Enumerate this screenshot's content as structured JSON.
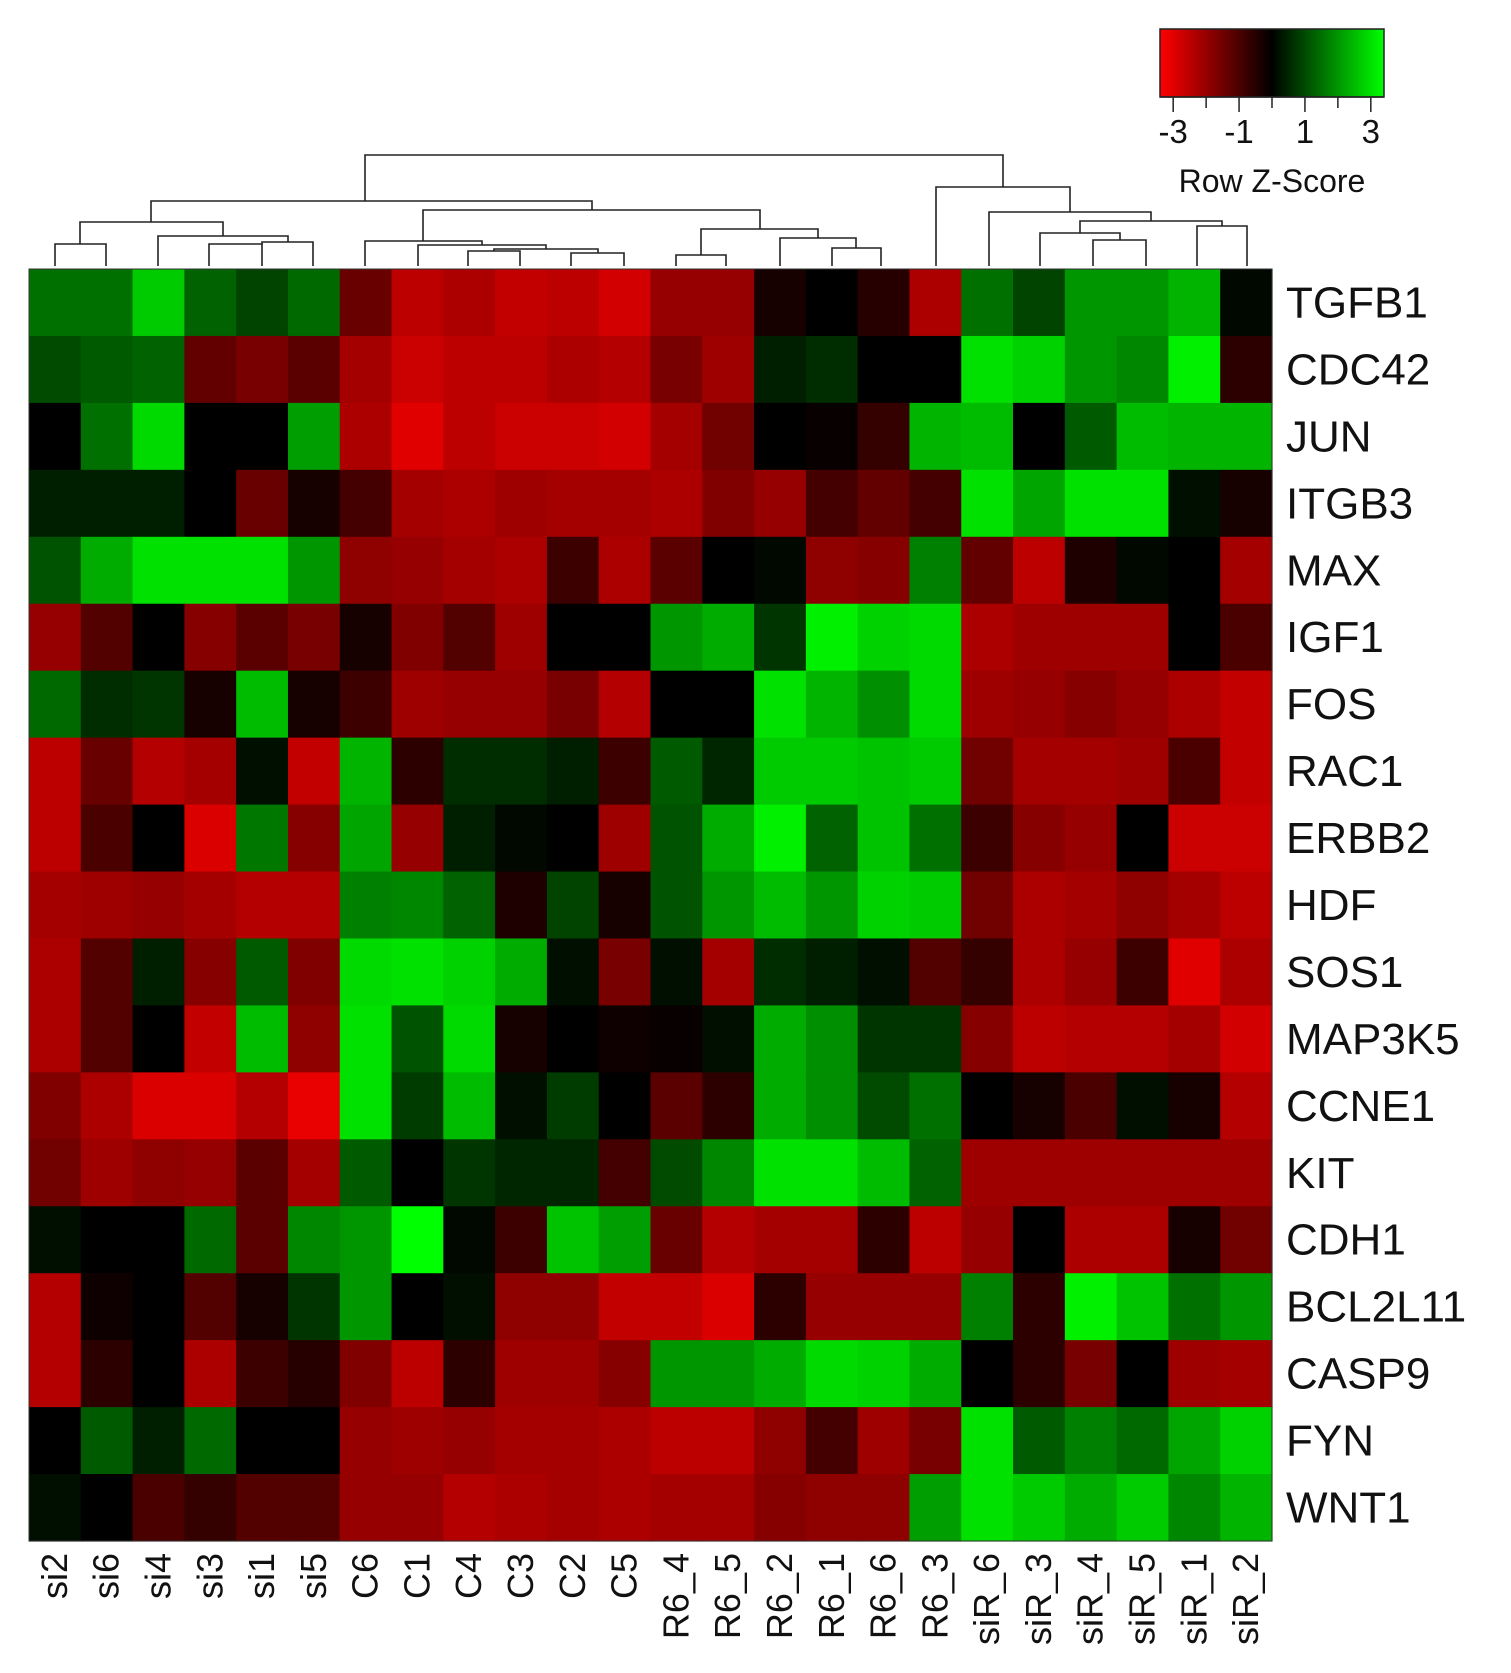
{
  "chart_data": {
    "type": "heatmap",
    "title": "",
    "xlabel": "",
    "ylabel": "",
    "columns": [
      "si2",
      "si6",
      "si4",
      "si3",
      "si1",
      "si5",
      "C6",
      "C1",
      "C4",
      "C3",
      "C2",
      "C5",
      "R6_4",
      "R6_5",
      "R6_2",
      "R6_1",
      "R6_6",
      "R6_3",
      "siR_6",
      "siR_3",
      "siR_4",
      "siR_5",
      "siR_1",
      "siR_2"
    ],
    "rows": [
      "TGFB1",
      "CDC42",
      "JUN",
      "ITGB3",
      "MAX",
      "IGF1",
      "FOS",
      "RAC1",
      "ERBB2",
      "HDF",
      "SOS1",
      "MAP3K5",
      "CCNE1",
      "KIT",
      "CDH1",
      "BCL2L11",
      "CASP9",
      "FYN",
      "WNT1"
    ],
    "values": [
      [
        1.5,
        1.5,
        2.7,
        1.3,
        0.9,
        1.4,
        -1.4,
        -2.5,
        -2.3,
        -2.6,
        -2.5,
        -2.8,
        -2.0,
        -2.0,
        -0.3,
        0.0,
        -0.5,
        -2.3,
        1.5,
        0.9,
        2.0,
        2.0,
        2.4,
        0.1
      ],
      [
        1.0,
        1.2,
        1.3,
        -1.3,
        -1.6,
        -1.2,
        -2.2,
        -2.7,
        -2.5,
        -2.5,
        -2.3,
        -2.4,
        -1.6,
        -2.1,
        0.4,
        0.6,
        0.0,
        0.0,
        3.0,
        2.8,
        2.0,
        1.8,
        3.2,
        -0.6
      ],
      [
        0.0,
        1.5,
        2.9,
        0.0,
        0.0,
        2.1,
        -2.3,
        -3.0,
        -2.5,
        -2.7,
        -2.7,
        -2.8,
        -2.2,
        -1.5,
        0.0,
        -0.1,
        -0.7,
        2.4,
        2.5,
        0.0,
        1.2,
        2.5,
        2.4,
        2.4
      ],
      [
        0.4,
        0.4,
        0.4,
        0.0,
        -1.4,
        -0.3,
        -0.9,
        -2.2,
        -2.3,
        -2.1,
        -2.2,
        -2.2,
        -2.3,
        -1.7,
        -2.0,
        -0.9,
        -1.3,
        -0.9,
        3.0,
        2.2,
        3.0,
        3.0,
        0.2,
        -0.3
      ],
      [
        1.1,
        2.3,
        3.0,
        3.0,
        3.0,
        2.0,
        -1.9,
        -2.0,
        -2.2,
        -2.3,
        -0.8,
        -2.3,
        -1.2,
        0.0,
        0.1,
        -1.9,
        -1.8,
        1.7,
        -1.3,
        -2.5,
        -0.4,
        0.1,
        0.0,
        -2.2
      ],
      [
        -2.0,
        -1.1,
        0.0,
        -1.8,
        -1.2,
        -1.6,
        -0.3,
        -1.7,
        -1.1,
        -2.1,
        0.0,
        0.0,
        2.0,
        2.3,
        0.7,
        3.2,
        2.8,
        2.9,
        -2.3,
        -2.1,
        -2.1,
        -2.1,
        0.0,
        -1.0
      ],
      [
        1.4,
        0.6,
        0.7,
        -0.3,
        2.5,
        -0.3,
        -0.8,
        -2.1,
        -2.0,
        -2.0,
        -1.6,
        -2.4,
        0.0,
        0.0,
        3.0,
        2.4,
        1.9,
        2.9,
        -2.1,
        -2.0,
        -1.8,
        -2.0,
        -2.3,
        -2.6
      ],
      [
        -2.5,
        -1.4,
        -2.4,
        -2.2,
        0.2,
        -2.6,
        2.4,
        -0.6,
        0.6,
        0.6,
        0.4,
        -0.8,
        1.2,
        0.5,
        2.7,
        2.7,
        2.6,
        2.7,
        -1.5,
        -2.2,
        -2.2,
        -2.1,
        -1.0,
        -2.6
      ],
      [
        -2.5,
        -1.0,
        0.0,
        -2.9,
        1.6,
        -1.8,
        2.2,
        -2.0,
        0.4,
        0.1,
        0.0,
        -2.1,
        1.1,
        2.3,
        3.2,
        1.3,
        2.6,
        1.5,
        -0.8,
        -1.8,
        -2.0,
        0.0,
        -2.7,
        -2.7
      ],
      [
        -2.2,
        -2.1,
        -2.0,
        -2.2,
        -2.4,
        -2.4,
        1.7,
        1.8,
        1.3,
        -0.4,
        0.9,
        -0.3,
        1.1,
        2.0,
        2.5,
        2.0,
        2.8,
        2.7,
        -1.5,
        -2.3,
        -2.2,
        -1.9,
        -2.2,
        -2.5
      ],
      [
        -2.3,
        -1.1,
        0.4,
        -1.8,
        1.2,
        -1.7,
        2.9,
        3.0,
        2.8,
        2.3,
        0.2,
        -1.6,
        0.2,
        -2.2,
        0.6,
        0.4,
        0.2,
        -1.1,
        -0.7,
        -2.3,
        -2.0,
        -0.8,
        -3.0,
        -2.3
      ],
      [
        -2.3,
        -1.1,
        0.0,
        -2.6,
        2.5,
        -1.9,
        3.0,
        1.1,
        2.9,
        -0.3,
        0.0,
        -0.2,
        -0.1,
        0.2,
        2.3,
        1.9,
        0.7,
        0.7,
        -1.8,
        -2.5,
        -2.4,
        -2.4,
        -2.2,
        -2.8
      ],
      [
        -1.7,
        -2.3,
        -2.9,
        -2.9,
        -2.4,
        -3.1,
        3.0,
        0.8,
        2.5,
        0.2,
        0.8,
        0.0,
        -1.2,
        -0.6,
        2.3,
        1.9,
        1.0,
        1.5,
        0.0,
        -0.3,
        -1.0,
        0.2,
        -0.3,
        -2.4
      ],
      [
        -1.5,
        -2.1,
        -1.9,
        -2.0,
        -1.2,
        -2.2,
        1.2,
        0.0,
        0.7,
        0.5,
        0.5,
        -0.9,
        1.0,
        1.8,
        3.0,
        3.0,
        2.5,
        1.3,
        -2.1,
        -2.1,
        -2.1,
        -2.1,
        -2.1,
        -2.1
      ],
      [
        0.2,
        0.0,
        0.0,
        1.4,
        -1.2,
        1.8,
        2.0,
        3.6,
        0.1,
        -0.8,
        2.6,
        2.1,
        -1.4,
        -2.4,
        -2.2,
        -2.2,
        -0.6,
        -2.5,
        -2.0,
        0.0,
        -2.3,
        -2.3,
        -0.3,
        -1.5
      ],
      [
        -2.4,
        -0.2,
        0.0,
        -1.1,
        -0.3,
        0.7,
        2.0,
        0.0,
        0.2,
        -1.9,
        -1.9,
        -2.6,
        -2.6,
        -2.9,
        -0.6,
        -2.0,
        -2.0,
        -2.0,
        1.7,
        -0.6,
        3.2,
        2.6,
        1.5,
        2.0
      ],
      [
        -2.4,
        -0.6,
        0.0,
        -2.3,
        -0.8,
        -0.5,
        -1.7,
        -2.5,
        -0.6,
        -2.1,
        -2.1,
        -1.8,
        2.0,
        2.0,
        2.3,
        2.9,
        2.8,
        2.3,
        0.0,
        -0.6,
        -1.6,
        0.0,
        -2.1,
        -2.2
      ],
      [
        0.0,
        1.2,
        0.4,
        1.4,
        0.0,
        0.0,
        -2.0,
        -2.1,
        -2.0,
        -2.2,
        -2.2,
        -2.3,
        -2.5,
        -2.5,
        -1.9,
        -0.9,
        -2.1,
        -1.6,
        3.0,
        1.2,
        1.7,
        1.4,
        2.2,
        2.8
      ],
      [
        0.2,
        0.0,
        -1.0,
        -0.7,
        -1.1,
        -1.1,
        -2.0,
        -2.0,
        -2.4,
        -2.3,
        -2.2,
        -2.3,
        -2.2,
        -2.2,
        -1.8,
        -1.9,
        -1.9,
        2.1,
        3.0,
        2.7,
        2.3,
        2.7,
        1.8,
        2.4
      ]
    ],
    "color_key": {
      "title": "Row Z-Score",
      "ticks": [
        "-3",
        "-1",
        "1",
        "3"
      ],
      "low_color": "#ff0000",
      "mid_color": "#000000",
      "high_color": "#00ff00",
      "range": [
        -3.4,
        3.4
      ]
    }
  }
}
